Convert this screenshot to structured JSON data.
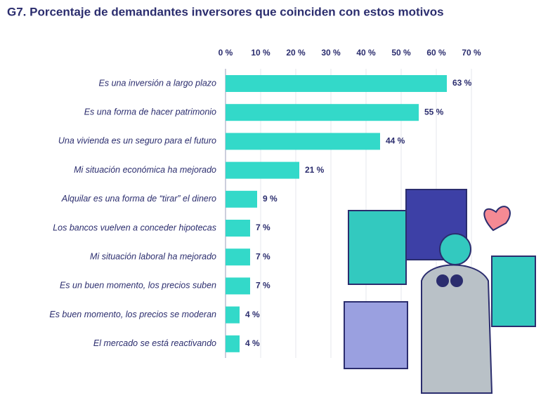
{
  "chart_data": {
    "type": "bar",
    "orientation": "horizontal",
    "title": "G7. Porcentaje de demandantes inversores que coinciden con estos motivos",
    "categories": [
      "Es una inversión a largo plazo",
      "Es una forma de hacer patrimonio",
      "Una vivienda es un seguro para el futuro",
      "Mi situación económica ha mejorado",
      "Alquilar es una forma de “tirar” el dinero",
      "Los bancos vuelven a conceder hipotecas",
      "Mi situación laboral ha mejorado",
      "Es un buen momento, los precios suben",
      "Es buen momento, los precios se moderan",
      "El mercado se está reactivando"
    ],
    "values": [
      63,
      55,
      44,
      21,
      9,
      7,
      7,
      7,
      4,
      4
    ],
    "value_labels": [
      "63 %",
      "55 %",
      "44 %",
      "21 %",
      "9 %",
      "7 %",
      "7 %",
      "7 %",
      "4 %",
      "4 %"
    ],
    "color": "#33d9c9",
    "xlim": [
      0,
      70
    ],
    "xticks": [
      {
        "value": 0,
        "label": "0 %"
      },
      {
        "value": 10,
        "label": "10 %"
      },
      {
        "value": 20,
        "label": "20 %"
      },
      {
        "value": 30,
        "label": "30 %"
      },
      {
        "value": 40,
        "label": "40 %"
      },
      {
        "value": 50,
        "label": "50 %"
      },
      {
        "value": 60,
        "label": "60 %"
      },
      {
        "value": 70,
        "label": "70 %"
      }
    ],
    "grid": true
  }
}
